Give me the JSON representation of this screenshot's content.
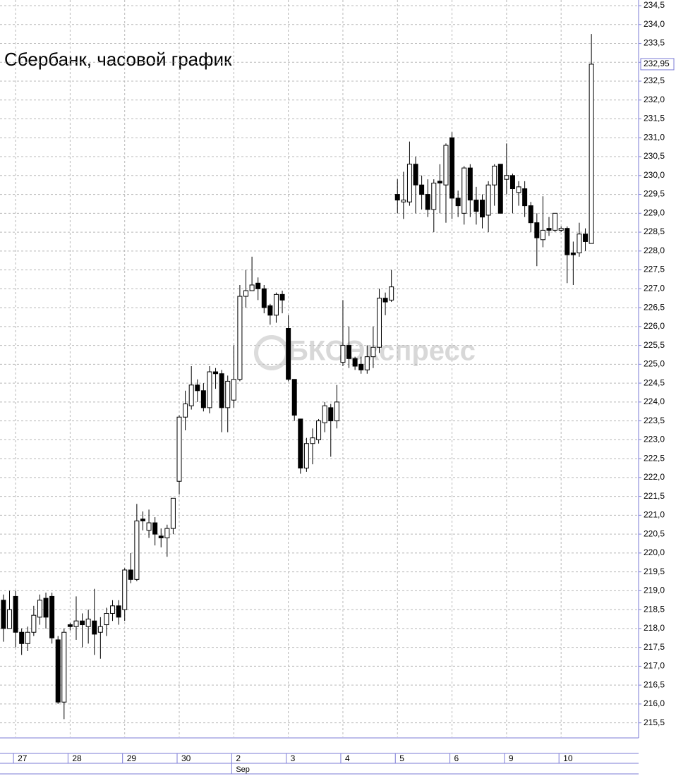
{
  "chart_data": {
    "type": "candlestick",
    "title": "Сбербанк, часовой график",
    "watermark": "БКСЭкспресс",
    "month_label": "Sep",
    "last_close_label": "232,95",
    "grid": true,
    "categories": [
      null,
      null,
      "27",
      null,
      null,
      null,
      null,
      null,
      null,
      null,
      null,
      "28",
      null,
      null,
      null,
      null,
      null,
      null,
      null,
      null,
      "29",
      null,
      null,
      null,
      null,
      null,
      null,
      null,
      null,
      "30",
      null,
      null,
      null,
      null,
      null,
      null,
      null,
      null,
      "2",
      null,
      null,
      null,
      null,
      null,
      null,
      null,
      null,
      "3",
      null,
      null,
      null,
      null,
      null,
      null,
      null,
      null,
      "4",
      null,
      null,
      null,
      null,
      null,
      null,
      null,
      null,
      "5",
      null,
      null,
      null,
      null,
      null,
      null,
      null,
      null,
      "6",
      null,
      null,
      null,
      null,
      null,
      null,
      null,
      null,
      "9",
      null,
      null,
      null,
      null,
      null,
      null,
      null,
      null,
      "10",
      null,
      null,
      null,
      null,
      null
    ],
    "open": [
      218.75,
      218.0,
      218.85,
      217.9,
      217.6,
      217.9,
      218.3,
      218.8,
      218.85,
      217.7,
      216.05,
      218.1,
      218.05,
      218.2,
      218.05,
      218.2,
      217.9,
      218.1,
      218.4,
      218.6,
      218.5,
      219.55,
      219.3,
      220.9,
      220.6,
      220.8,
      220.45,
      220.4,
      220.65,
      221.9,
      223.6,
      223.9,
      224.45,
      224.3,
      223.85,
      224.8,
      224.75,
      223.85,
      224.05,
      224.6,
      226.8,
      226.95,
      227.15,
      227.0,
      226.55,
      226.3,
      226.85,
      225.95,
      224.6,
      223.55,
      222.25,
      222.9,
      223.0,
      223.45,
      223.85,
      223.5,
      225.05,
      225.5,
      225.15,
      225.0,
      224.85,
      225.2,
      225.45,
      226.75,
      226.7,
      229.5,
      229.3,
      229.3,
      230.3,
      229.75,
      229.5,
      229.1,
      229.85,
      229.75,
      231.0,
      229.4,
      229.0,
      230.2,
      229.35,
      229.35,
      228.95,
      229.75,
      230.3,
      229.9,
      230.0,
      229.55,
      229.65,
      229.2,
      228.75,
      228.3,
      228.6,
      228.55,
      228.55,
      228.6,
      227.95,
      227.95,
      228.45,
      228.2
    ],
    "high": [
      218.9,
      219.0,
      219.0,
      218.0,
      218.05,
      218.6,
      218.9,
      218.95,
      218.95,
      217.8,
      218.0,
      218.15,
      218.85,
      218.4,
      218.5,
      219.05,
      218.3,
      218.55,
      218.75,
      218.75,
      219.6,
      220.0,
      221.3,
      221.1,
      221.15,
      220.95,
      220.65,
      220.75,
      221.45,
      223.65,
      224.3,
      224.95,
      224.6,
      224.5,
      224.95,
      224.9,
      224.85,
      224.7,
      225.5,
      227.1,
      227.5,
      227.85,
      227.3,
      227.1,
      226.6,
      226.9,
      226.95,
      226.3,
      224.6,
      223.55,
      223.05,
      223.3,
      223.55,
      224.0,
      223.95,
      224.45,
      226.7,
      226.0,
      225.2,
      225.2,
      225.5,
      226.0,
      227.0,
      226.9,
      227.5,
      229.9,
      230.1,
      230.9,
      230.5,
      230.0,
      229.9,
      229.9,
      230.3,
      230.85,
      231.15,
      229.6,
      230.25,
      230.3,
      229.7,
      229.5,
      229.85,
      230.3,
      230.3,
      230.85,
      230.05,
      229.85,
      229.85,
      229.3,
      229.0,
      229.45,
      228.9,
      229.0,
      228.65,
      228.65,
      228.25,
      228.75,
      228.6,
      233.75
    ],
    "low": [
      217.65,
      218.0,
      217.5,
      217.3,
      217.4,
      217.8,
      218.1,
      218.0,
      217.6,
      216.0,
      215.6,
      217.95,
      217.7,
      217.5,
      217.6,
      217.3,
      217.2,
      217.8,
      218.2,
      218.1,
      218.2,
      219.2,
      219.25,
      220.6,
      220.4,
      220.2,
      220.15,
      219.9,
      220.5,
      221.55,
      223.25,
      223.8,
      224.0,
      223.75,
      223.7,
      224.35,
      223.2,
      223.2,
      223.85,
      224.55,
      226.5,
      226.95,
      226.7,
      226.35,
      226.05,
      226.1,
      226.35,
      224.55,
      223.5,
      222.1,
      222.15,
      222.35,
      222.9,
      223.2,
      222.55,
      223.3,
      224.95,
      224.9,
      224.85,
      224.75,
      224.75,
      224.9,
      225.3,
      226.3,
      226.65,
      229.0,
      228.85,
      229.2,
      229.0,
      229.1,
      228.9,
      228.5,
      229.0,
      228.75,
      228.85,
      228.9,
      228.7,
      228.9,
      228.7,
      228.6,
      228.5,
      229.2,
      229.0,
      229.5,
      229.0,
      229.2,
      228.9,
      228.5,
      227.6,
      228.1,
      228.4,
      228.5,
      228.5,
      227.15,
      227.1,
      227.85,
      228.0,
      228.2
    ],
    "close": [
      218.0,
      218.5,
      217.9,
      217.6,
      217.9,
      218.35,
      218.75,
      218.3,
      217.75,
      216.05,
      217.9,
      218.05,
      218.2,
      218.1,
      218.25,
      217.85,
      218.05,
      218.4,
      218.6,
      218.3,
      219.55,
      219.3,
      220.85,
      220.85,
      220.8,
      220.5,
      220.4,
      220.65,
      221.45,
      223.6,
      223.95,
      224.45,
      224.3,
      223.85,
      224.8,
      224.75,
      223.85,
      224.55,
      224.6,
      226.8,
      226.95,
      227.1,
      227.0,
      226.5,
      226.3,
      226.85,
      226.7,
      224.6,
      223.65,
      222.25,
      222.9,
      223.05,
      223.5,
      223.9,
      223.5,
      224.0,
      225.5,
      225.15,
      224.95,
      224.85,
      225.2,
      225.45,
      226.75,
      226.65,
      227.05,
      229.35,
      229.35,
      230.3,
      229.75,
      229.5,
      229.1,
      229.8,
      229.8,
      230.8,
      229.4,
      229.2,
      230.2,
      229.35,
      229.05,
      228.9,
      229.75,
      230.25,
      229.0,
      230.0,
      229.65,
      229.7,
      229.2,
      228.75,
      228.35,
      228.55,
      228.55,
      229.0,
      228.6,
      227.9,
      227.9,
      228.45,
      228.25,
      232.95
    ],
    "ylim": [
      215.12,
      234.65
    ],
    "yticks": [
      {
        "value": 215.5,
        "label": "215,5"
      },
      {
        "value": 216.0,
        "label": "216,0"
      },
      {
        "value": 216.5,
        "label": "216,5"
      },
      {
        "value": 217.0,
        "label": "217,0"
      },
      {
        "value": 217.5,
        "label": "217,5"
      },
      {
        "value": 218.0,
        "label": "218,0"
      },
      {
        "value": 218.5,
        "label": "218,5"
      },
      {
        "value": 219.0,
        "label": "219,0"
      },
      {
        "value": 219.5,
        "label": "219,5"
      },
      {
        "value": 220.0,
        "label": "220,0"
      },
      {
        "value": 220.5,
        "label": "220,5"
      },
      {
        "value": 221.0,
        "label": "221,0"
      },
      {
        "value": 221.5,
        "label": "221,5"
      },
      {
        "value": 222.0,
        "label": "222,0"
      },
      {
        "value": 222.5,
        "label": "222,5"
      },
      {
        "value": 223.0,
        "label": "223,0"
      },
      {
        "value": 223.5,
        "label": "223,5"
      },
      {
        "value": 224.0,
        "label": "224,0"
      },
      {
        "value": 224.5,
        "label": "224,5"
      },
      {
        "value": 225.0,
        "label": "225,0"
      },
      {
        "value": 225.5,
        "label": "225,5"
      },
      {
        "value": 226.0,
        "label": "226,0"
      },
      {
        "value": 226.5,
        "label": "226,5"
      },
      {
        "value": 227.0,
        "label": "227,0"
      },
      {
        "value": 227.5,
        "label": "227,5"
      },
      {
        "value": 228.0,
        "label": "228,0"
      },
      {
        "value": 228.5,
        "label": "228,5"
      },
      {
        "value": 229.0,
        "label": "229,0"
      },
      {
        "value": 229.5,
        "label": "229,5"
      },
      {
        "value": 230.0,
        "label": "230,0"
      },
      {
        "value": 230.5,
        "label": "230,5"
      },
      {
        "value": 231.0,
        "label": "231,0"
      },
      {
        "value": 231.5,
        "label": "231,5"
      },
      {
        "value": 232.0,
        "label": "232,0"
      },
      {
        "value": 232.5,
        "label": "232,5"
      },
      {
        "value": 233.0,
        "label": "233,0"
      },
      {
        "value": 233.5,
        "label": "233,5"
      },
      {
        "value": 234.0,
        "label": "234,0"
      },
      {
        "value": 234.5,
        "label": "234,5"
      }
    ]
  }
}
